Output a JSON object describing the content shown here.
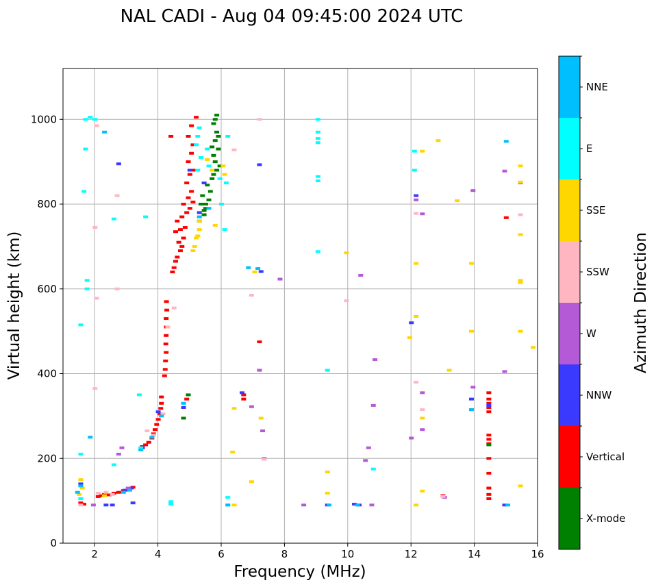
{
  "chart_data": {
    "type": "scatter",
    "title": "NAL CADI - Aug 04 09:45:00 2024 UTC",
    "xlabel": "Frequency (MHz)",
    "ylabel": "Virtual height (km)",
    "xlim": [
      1.0,
      16.0
    ],
    "ylim": [
      0,
      1120
    ],
    "xticks": [
      2,
      4,
      6,
      8,
      10,
      12,
      14,
      16
    ],
    "yticks": [
      0,
      200,
      400,
      600,
      800,
      1000
    ],
    "grid": true,
    "colorbar": {
      "label": "Azimuth Direction",
      "categories": [
        {
          "name": "X-mode",
          "color": "#008000"
        },
        {
          "name": "Vertical",
          "color": "#ff0000"
        },
        {
          "name": "NNW",
          "color": "#3a3aff"
        },
        {
          "name": "W",
          "color": "#b45ad6"
        },
        {
          "name": "SSW",
          "color": "#ffb6c1"
        },
        {
          "name": "SSE",
          "color": "#ffd700"
        },
        {
          "name": "E",
          "color": "#00ffff"
        },
        {
          "name": "NNE",
          "color": "#00bfff"
        }
      ]
    },
    "series": [
      {
        "name": "Vertical",
        "points": [
          [
            1.55,
            95
          ],
          [
            1.65,
            92
          ],
          [
            2.1,
            110
          ],
          [
            2.2,
            112
          ],
          [
            2.3,
            115
          ],
          [
            2.45,
            114
          ],
          [
            2.6,
            118
          ],
          [
            2.75,
            120
          ],
          [
            2.9,
            124
          ],
          [
            3.05,
            127
          ],
          [
            3.2,
            132
          ],
          [
            3.5,
            228
          ],
          [
            3.6,
            232
          ],
          [
            3.7,
            238
          ],
          [
            3.8,
            248
          ],
          [
            3.85,
            258
          ],
          [
            3.9,
            268
          ],
          [
            3.95,
            280
          ],
          [
            4.0,
            292
          ],
          [
            4.05,
            305
          ],
          [
            4.08,
            318
          ],
          [
            4.1,
            330
          ],
          [
            4.1,
            345
          ],
          [
            4.2,
            395
          ],
          [
            4.22,
            410
          ],
          [
            4.23,
            430
          ],
          [
            4.25,
            450
          ],
          [
            4.24,
            470
          ],
          [
            4.25,
            490
          ],
          [
            4.26,
            510
          ],
          [
            4.25,
            530
          ],
          [
            4.27,
            550
          ],
          [
            4.26,
            570
          ],
          [
            4.45,
            640
          ],
          [
            4.5,
            650
          ],
          [
            4.55,
            665
          ],
          [
            4.6,
            675
          ],
          [
            4.7,
            690
          ],
          [
            4.75,
            700
          ],
          [
            4.65,
            710
          ],
          [
            4.8,
            720
          ],
          [
            4.55,
            735
          ],
          [
            4.7,
            740
          ],
          [
            4.85,
            745
          ],
          [
            4.6,
            760
          ],
          [
            4.75,
            770
          ],
          [
            4.9,
            780
          ],
          [
            5.0,
            790
          ],
          [
            4.8,
            800
          ],
          [
            5.1,
            805
          ],
          [
            4.95,
            815
          ],
          [
            5.05,
            830
          ],
          [
            4.9,
            850
          ],
          [
            5.0,
            870
          ],
          [
            5.1,
            880
          ],
          [
            4.95,
            900
          ],
          [
            5.05,
            920
          ],
          [
            5.1,
            940
          ],
          [
            4.95,
            960
          ],
          [
            5.05,
            985
          ],
          [
            5.2,
            1005
          ],
          [
            4.4,
            960
          ],
          [
            6.7,
            340
          ],
          [
            6.7,
            350
          ],
          [
            7.2,
            475
          ],
          [
            15.0,
            768
          ],
          [
            14.45,
            105
          ],
          [
            14.45,
            115
          ],
          [
            14.45,
            130
          ],
          [
            14.45,
            165
          ],
          [
            14.45,
            200
          ],
          [
            14.45,
            235
          ],
          [
            14.45,
            245
          ],
          [
            14.45,
            255
          ],
          [
            14.45,
            310
          ],
          [
            14.45,
            320
          ],
          [
            14.45,
            330
          ],
          [
            14.45,
            340
          ],
          [
            14.45,
            355
          ],
          [
            13.0,
            112
          ],
          [
            4.9,
            340
          ]
        ]
      },
      {
        "name": "X-mode",
        "points": [
          [
            5.3,
            760
          ],
          [
            5.45,
            775
          ],
          [
            5.5,
            790
          ],
          [
            5.35,
            800
          ],
          [
            5.6,
            810
          ],
          [
            5.4,
            820
          ],
          [
            5.65,
            830
          ],
          [
            5.55,
            845
          ],
          [
            5.7,
            860
          ],
          [
            5.75,
            870
          ],
          [
            5.85,
            880
          ],
          [
            5.8,
            900
          ],
          [
            5.75,
            915
          ],
          [
            5.9,
            930
          ],
          [
            5.8,
            950
          ],
          [
            5.85,
            970
          ],
          [
            5.75,
            990
          ],
          [
            5.85,
            1010
          ],
          [
            5.5,
            800
          ],
          [
            5.45,
            785
          ],
          [
            5.95,
            890
          ],
          [
            5.7,
            935
          ],
          [
            5.9,
            960
          ],
          [
            5.8,
            1000
          ],
          [
            4.95,
            350
          ],
          [
            4.8,
            295
          ],
          [
            14.45,
            232
          ]
        ]
      },
      {
        "name": "NNW",
        "points": [
          [
            1.55,
            140
          ],
          [
            2.95,
            125
          ],
          [
            3.15,
            130
          ],
          [
            3.2,
            95
          ],
          [
            3.5,
            225
          ],
          [
            4.0,
            310
          ],
          [
            4.8,
            320
          ],
          [
            5.0,
            880
          ],
          [
            5.45,
            850
          ],
          [
            6.65,
            355
          ],
          [
            9.35,
            90
          ],
          [
            10.2,
            92
          ],
          [
            10.35,
            90
          ],
          [
            12.0,
            520
          ],
          [
            12.15,
            820
          ],
          [
            13.9,
            315
          ],
          [
            13.9,
            340
          ],
          [
            14.45,
            325
          ],
          [
            14.95,
            90
          ],
          [
            2.35,
            90
          ],
          [
            2.55,
            90
          ],
          [
            5.3,
            780
          ],
          [
            2.75,
            895
          ],
          [
            7.2,
            893
          ],
          [
            7.25,
            641
          ]
        ]
      },
      {
        "name": "W",
        "points": [
          [
            2.85,
            225
          ],
          [
            2.75,
            210
          ],
          [
            3.05,
            130
          ],
          [
            6.95,
            322
          ],
          [
            7.2,
            408
          ],
          [
            7.35,
            200
          ],
          [
            7.3,
            265
          ],
          [
            7.85,
            623
          ],
          [
            8.6,
            90
          ],
          [
            10.4,
            632
          ],
          [
            10.55,
            195
          ],
          [
            10.65,
            225
          ],
          [
            10.8,
            325
          ],
          [
            10.85,
            433
          ],
          [
            12.0,
            248
          ],
          [
            12.35,
            355
          ],
          [
            12.35,
            268
          ],
          [
            12.35,
            777
          ],
          [
            13.05,
            108
          ],
          [
            13.95,
            368
          ],
          [
            13.95,
            832
          ],
          [
            14.95,
            405
          ],
          [
            14.95,
            878
          ],
          [
            15.45,
            850
          ],
          [
            10.75,
            90
          ],
          [
            1.95,
            90
          ],
          [
            12.15,
            810
          ]
        ]
      },
      {
        "name": "SSW",
        "points": [
          [
            2.1,
            118
          ],
          [
            2.35,
            120
          ],
          [
            2.55,
            115
          ],
          [
            2.7,
            820
          ],
          [
            2.7,
            600
          ],
          [
            3.65,
            265
          ],
          [
            3.85,
            255
          ],
          [
            4.15,
            305
          ],
          [
            4.3,
            510
          ],
          [
            4.5,
            555
          ],
          [
            6.4,
            928
          ],
          [
            6.95,
            585
          ],
          [
            7.35,
            198
          ],
          [
            7.2,
            1000
          ],
          [
            9.95,
            572
          ],
          [
            12.15,
            380
          ],
          [
            12.15,
            778
          ],
          [
            12.35,
            315
          ],
          [
            13.0,
            110
          ],
          [
            15.45,
            775
          ],
          [
            2.0,
            745
          ],
          [
            2.05,
            578
          ],
          [
            2.0,
            365
          ],
          [
            2.05,
            985
          ],
          [
            1.55,
            90
          ]
        ]
      },
      {
        "name": "SSE",
        "points": [
          [
            1.5,
            115
          ],
          [
            1.6,
            130
          ],
          [
            1.55,
            150
          ],
          [
            2.3,
            112
          ],
          [
            5.15,
            700
          ],
          [
            5.2,
            720
          ],
          [
            5.1,
            690
          ],
          [
            5.3,
            740
          ],
          [
            5.3,
            760
          ],
          [
            5.25,
            725
          ],
          [
            6.05,
            890
          ],
          [
            6.1,
            870
          ],
          [
            6.4,
            318
          ],
          [
            6.35,
            215
          ],
          [
            6.4,
            90
          ],
          [
            6.95,
            145
          ],
          [
            7.05,
            640
          ],
          [
            7.25,
            295
          ],
          [
            9.35,
            168
          ],
          [
            9.35,
            118
          ],
          [
            9.95,
            685
          ],
          [
            11.95,
            485
          ],
          [
            12.15,
            535
          ],
          [
            12.15,
            660
          ],
          [
            12.15,
            90
          ],
          [
            12.35,
            123
          ],
          [
            12.35,
            295
          ],
          [
            12.35,
            925
          ],
          [
            12.85,
            950
          ],
          [
            13.2,
            408
          ],
          [
            13.45,
            808
          ],
          [
            13.9,
            500
          ],
          [
            13.9,
            660
          ],
          [
            15.45,
            135
          ],
          [
            15.45,
            500
          ],
          [
            15.45,
            615
          ],
          [
            15.45,
            620
          ],
          [
            15.45,
            728
          ],
          [
            15.45,
            852
          ],
          [
            15.45,
            890
          ],
          [
            15.85,
            462
          ],
          [
            5.55,
            905
          ],
          [
            5.7,
            880
          ],
          [
            5.8,
            750
          ]
        ]
      },
      {
        "name": "E",
        "points": [
          [
            1.55,
            105
          ],
          [
            1.55,
            210
          ],
          [
            1.65,
            830
          ],
          [
            1.7,
            1000
          ],
          [
            1.85,
            1005
          ],
          [
            1.55,
            515
          ],
          [
            1.75,
            620
          ],
          [
            1.7,
            930
          ],
          [
            1.75,
            600
          ],
          [
            2.6,
            765
          ],
          [
            3.4,
            350
          ],
          [
            3.45,
            225
          ],
          [
            3.6,
            770
          ],
          [
            4.4,
            92
          ],
          [
            4.4,
            98
          ],
          [
            4.8,
            330
          ],
          [
            5.2,
            940
          ],
          [
            5.25,
            960
          ],
          [
            5.3,
            980
          ],
          [
            5.25,
            880
          ],
          [
            5.35,
            910
          ],
          [
            5.55,
            930
          ],
          [
            5.6,
            890
          ],
          [
            5.95,
            860
          ],
          [
            6.0,
            800
          ],
          [
            6.1,
            740
          ],
          [
            6.15,
            850
          ],
          [
            6.2,
            960
          ],
          [
            6.2,
            108
          ],
          [
            6.2,
            90
          ],
          [
            9.05,
            945
          ],
          [
            9.05,
            955
          ],
          [
            9.05,
            970
          ],
          [
            9.05,
            1000
          ],
          [
            9.05,
            865
          ],
          [
            9.05,
            855
          ],
          [
            9.05,
            688
          ],
          [
            9.35,
            408
          ],
          [
            10.8,
            175
          ],
          [
            12.1,
            925
          ],
          [
            12.1,
            880
          ],
          [
            2.6,
            185
          ],
          [
            2.0,
            1000
          ]
        ]
      },
      {
        "name": "NNE",
        "points": [
          [
            1.45,
            120
          ],
          [
            1.55,
            135
          ],
          [
            2.9,
            120
          ],
          [
            3.1,
            125
          ],
          [
            3.45,
            220
          ],
          [
            3.8,
            250
          ],
          [
            4.1,
            300
          ],
          [
            4.8,
            330
          ],
          [
            5.3,
            770
          ],
          [
            5.6,
            790
          ],
          [
            6.2,
            90
          ],
          [
            6.85,
            650
          ],
          [
            7.15,
            648
          ],
          [
            9.4,
            90
          ],
          [
            10.3,
            90
          ],
          [
            15.0,
            948
          ],
          [
            15.05,
            90
          ],
          [
            13.9,
            315
          ],
          [
            1.85,
            250
          ],
          [
            2.3,
            970
          ]
        ]
      }
    ]
  }
}
